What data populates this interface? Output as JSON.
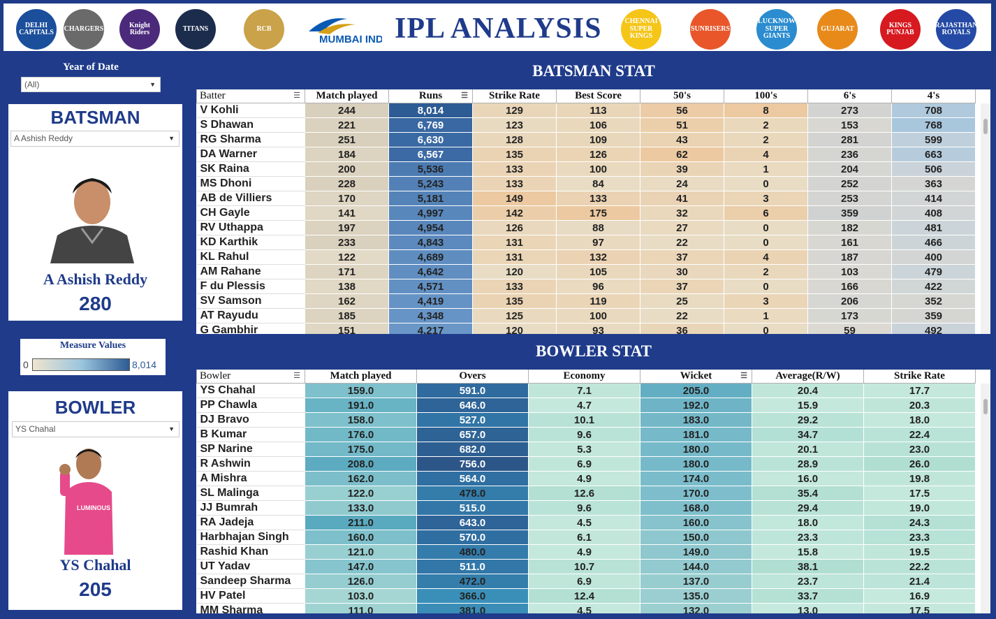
{
  "header": {
    "title": "IPL ANALYSIS",
    "logos": [
      {
        "id": "delhi-capitals-logo",
        "text": "DELHI CAPITALS",
        "color": "#1b4f9c",
        "x": 18
      },
      {
        "id": "deccan-chargers-logo",
        "text": "CHARGERS",
        "color": "#6a6a6a",
        "x": 86
      },
      {
        "id": "kkr-logo",
        "text": "Knight Riders",
        "color": "#4b2a7b",
        "x": 166
      },
      {
        "id": "gujarat-titans-logo",
        "text": "TITANS",
        "color": "#1c2c4c",
        "x": 246
      },
      {
        "id": "rcb-logo",
        "text": "RCB",
        "color": "#c9a24a",
        "x": 344
      },
      {
        "id": "csk-logo",
        "text": "CHENNAI SUPER KINGS",
        "color": "#f5c518",
        "x": 884
      },
      {
        "id": "srh-logo",
        "text": "SUNRISERS",
        "color": "#e8562a",
        "x": 983
      },
      {
        "id": "lsg-logo",
        "text": "LUCKNOW SUPER GIANTS",
        "color": "#2b8ccf",
        "x": 1078
      },
      {
        "id": "gujarat-lions-logo",
        "text": "GUJARAT",
        "color": "#e88a1a",
        "x": 1165
      },
      {
        "id": "punjab-kings-logo",
        "text": "KINGS PUNJAB",
        "color": "#d71920",
        "x": 1255
      },
      {
        "id": "rajasthan-royals-logo",
        "text": "RAJASTHAN ROYALS",
        "color": "#254aa5",
        "x": 1335
      }
    ],
    "mumbai_logo_text": "MUMBAI INDIANS"
  },
  "filters": {
    "year_label": "Year of Date",
    "year_value": "(All)"
  },
  "batsman_card": {
    "title": "BATSMAN",
    "selected": "A Ashish Reddy",
    "player_name": "A Ashish Reddy",
    "value": "280"
  },
  "legend": {
    "title": "Measure Values",
    "min": "0",
    "max": "8,014"
  },
  "bowler_card": {
    "title": "BOWLER",
    "selected": "YS Chahal",
    "player_name": "YS Chahal",
    "value": "205"
  },
  "batsman_table": {
    "title": "BATSMAN STAT",
    "columns": [
      "Batter",
      "Match played",
      "Runs",
      "Strike Rate",
      "Best Score",
      "50's",
      "100's",
      "6's",
      "4's"
    ],
    "rows": [
      [
        "V Kohli",
        "244",
        "8,014",
        "129",
        "113",
        "56",
        "8",
        "273",
        "708"
      ],
      [
        "S Dhawan",
        "221",
        "6,769",
        "123",
        "106",
        "51",
        "2",
        "153",
        "768"
      ],
      [
        "RG Sharma",
        "251",
        "6,630",
        "128",
        "109",
        "43",
        "2",
        "281",
        "599"
      ],
      [
        "DA Warner",
        "184",
        "6,567",
        "135",
        "126",
        "62",
        "4",
        "236",
        "663"
      ],
      [
        "SK Raina",
        "200",
        "5,536",
        "133",
        "100",
        "39",
        "1",
        "204",
        "506"
      ],
      [
        "MS Dhoni",
        "228",
        "5,243",
        "133",
        "84",
        "24",
        "0",
        "252",
        "363"
      ],
      [
        "AB de Villiers",
        "170",
        "5,181",
        "149",
        "133",
        "41",
        "3",
        "253",
        "414"
      ],
      [
        "CH Gayle",
        "141",
        "4,997",
        "142",
        "175",
        "32",
        "6",
        "359",
        "408"
      ],
      [
        "RV Uthappa",
        "197",
        "4,954",
        "126",
        "88",
        "27",
        "0",
        "182",
        "481"
      ],
      [
        "KD Karthik",
        "233",
        "4,843",
        "131",
        "97",
        "22",
        "0",
        "161",
        "466"
      ],
      [
        "KL Rahul",
        "122",
        "4,689",
        "131",
        "132",
        "37",
        "4",
        "187",
        "400"
      ],
      [
        "AM Rahane",
        "171",
        "4,642",
        "120",
        "105",
        "30",
        "2",
        "103",
        "479"
      ],
      [
        "F du Plessis",
        "138",
        "4,571",
        "133",
        "96",
        "37",
        "0",
        "166",
        "422"
      ],
      [
        "SV Samson",
        "162",
        "4,419",
        "135",
        "119",
        "25",
        "3",
        "206",
        "352"
      ],
      [
        "AT Rayudu",
        "185",
        "4,348",
        "125",
        "100",
        "22",
        "1",
        "173",
        "359"
      ],
      [
        "G Gambhir",
        "151",
        "4,217",
        "120",
        "93",
        "36",
        "0",
        "59",
        "492"
      ]
    ]
  },
  "bowler_table": {
    "title": "BOWLER STAT",
    "columns": [
      "Bowler",
      "Match played",
      "Overs",
      "Economy",
      "Wicket",
      "Average(R/W)",
      "Strike Rate"
    ],
    "rows": [
      [
        "YS Chahal",
        "159.0",
        "591.0",
        "7.1",
        "205.0",
        "20.4",
        "17.7"
      ],
      [
        "PP Chawla",
        "191.0",
        "646.0",
        "4.7",
        "192.0",
        "15.9",
        "20.3"
      ],
      [
        "DJ Bravo",
        "158.0",
        "527.0",
        "10.1",
        "183.0",
        "29.2",
        "18.0"
      ],
      [
        "B Kumar",
        "176.0",
        "657.0",
        "9.6",
        "181.0",
        "34.7",
        "22.4"
      ],
      [
        "SP Narine",
        "175.0",
        "682.0",
        "5.3",
        "180.0",
        "20.1",
        "23.0"
      ],
      [
        "R Ashwin",
        "208.0",
        "756.0",
        "6.9",
        "180.0",
        "28.9",
        "26.0"
      ],
      [
        "A Mishra",
        "162.0",
        "564.0",
        "4.9",
        "174.0",
        "16.0",
        "19.8"
      ],
      [
        "SL Malinga",
        "122.0",
        "478.0",
        "12.6",
        "170.0",
        "35.4",
        "17.5"
      ],
      [
        "JJ Bumrah",
        "133.0",
        "515.0",
        "9.6",
        "168.0",
        "29.4",
        "19.0"
      ],
      [
        "RA Jadeja",
        "211.0",
        "643.0",
        "4.5",
        "160.0",
        "18.0",
        "24.3"
      ],
      [
        "Harbhajan Singh",
        "160.0",
        "570.0",
        "6.1",
        "150.0",
        "23.3",
        "23.3"
      ],
      [
        "Rashid Khan",
        "121.0",
        "480.0",
        "4.9",
        "149.0",
        "15.8",
        "19.5"
      ],
      [
        "UT Yadav",
        "147.0",
        "511.0",
        "10.7",
        "144.0",
        "38.1",
        "22.2"
      ],
      [
        "Sandeep Sharma",
        "126.0",
        "472.0",
        "6.9",
        "137.0",
        "23.7",
        "21.4"
      ],
      [
        "HV Patel",
        "103.0",
        "366.0",
        "12.4",
        "135.0",
        "33.7",
        "16.9"
      ],
      [
        "MM Sharma",
        "111.0",
        "381.0",
        "4.5",
        "132.0",
        "13.0",
        "17.5"
      ]
    ]
  },
  "colors": {
    "background": "#1f3b8a",
    "title_blue": "#1f3b8a",
    "heat_low": "#efe4cf",
    "heat_mid": "#9cc6de",
    "heat_high": "#2d5b94"
  }
}
